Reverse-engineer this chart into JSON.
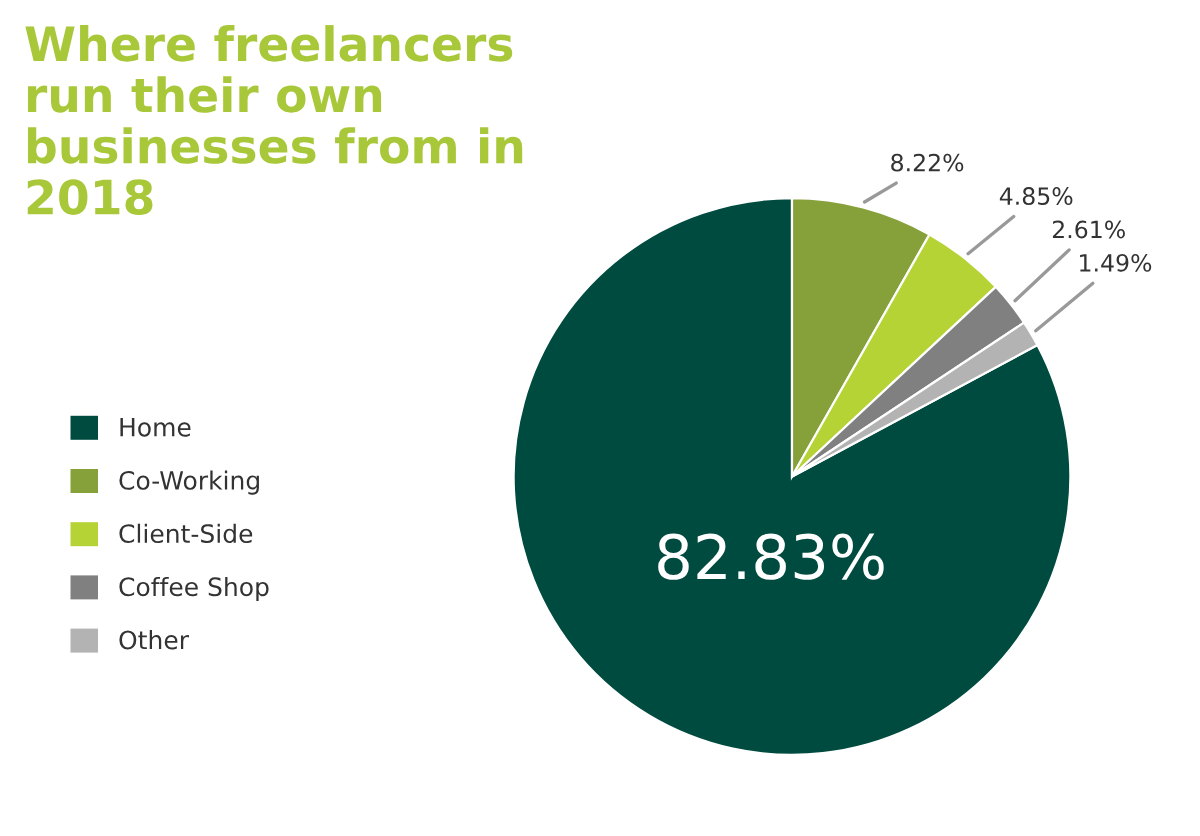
{
  "chart_data": {
    "type": "pie",
    "title": "Where freelancers run their own businesses from in 2018",
    "categories": [
      "Home",
      "Co-Working",
      "Client-Side",
      "Coffee Shop",
      "Other"
    ],
    "values": [
      82.83,
      8.22,
      4.85,
      2.61,
      1.49
    ],
    "colors": [
      "#004b3f",
      "#86a03a",
      "#b5d334",
      "#808080",
      "#b3b3b3"
    ],
    "value_labels": [
      "82.83%",
      "8.22%",
      "4.85%",
      "2.61%",
      "1.49%"
    ],
    "legend": "left"
  }
}
